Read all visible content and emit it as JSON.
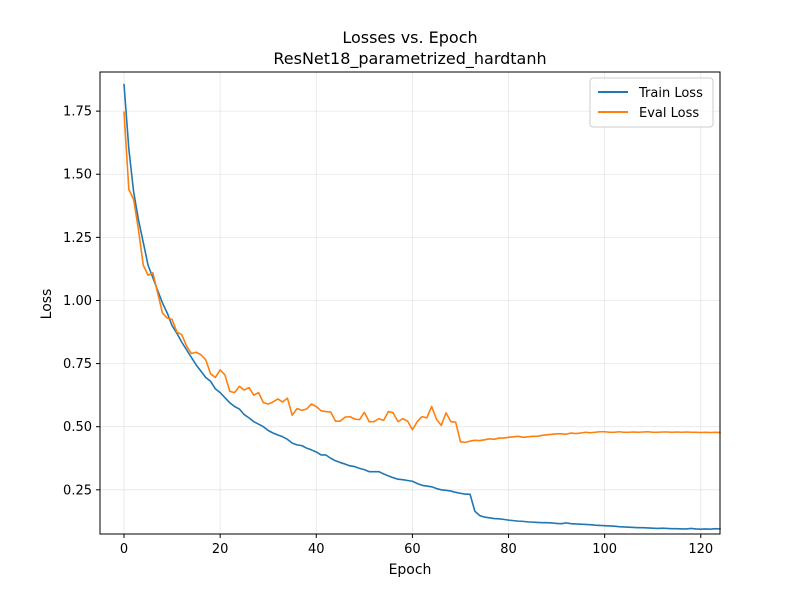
{
  "chart_data": {
    "type": "line",
    "title": "Losses vs. Epoch",
    "subtitle": "ResNet18_parametrized_hardtanh",
    "xlabel": "Epoch",
    "ylabel": "Loss",
    "xlim": [
      -5,
      124
    ],
    "ylim": [
      0.075,
      1.905
    ],
    "xticks": [
      0,
      20,
      40,
      60,
      80,
      100,
      120
    ],
    "yticks": [
      0.25,
      0.5,
      0.75,
      1.0,
      1.25,
      1.5,
      1.75
    ],
    "xtick_labels": [
      "0",
      "20",
      "40",
      "60",
      "80",
      "100",
      "120"
    ],
    "ytick_labels": [
      "0.25",
      "0.50",
      "0.75",
      "1.00",
      "1.25",
      "1.50",
      "1.75"
    ],
    "grid": true,
    "legend_position": "top-right",
    "series": [
      {
        "name": "Train Loss",
        "color": "#1f77b4",
        "x_start": 0,
        "values": [
          1.855,
          1.6,
          1.43,
          1.32,
          1.23,
          1.14,
          1.09,
          1.04,
          0.99,
          0.95,
          0.9,
          0.87,
          0.835,
          0.805,
          0.775,
          0.745,
          0.72,
          0.695,
          0.68,
          0.65,
          0.635,
          0.615,
          0.595,
          0.58,
          0.57,
          0.548,
          0.535,
          0.52,
          0.51,
          0.5,
          0.485,
          0.475,
          0.467,
          0.46,
          0.45,
          0.435,
          0.428,
          0.425,
          0.415,
          0.408,
          0.4,
          0.388,
          0.388,
          0.375,
          0.365,
          0.358,
          0.352,
          0.345,
          0.342,
          0.335,
          0.33,
          0.322,
          0.322,
          0.322,
          0.313,
          0.305,
          0.298,
          0.292,
          0.29,
          0.287,
          0.284,
          0.275,
          0.268,
          0.265,
          0.262,
          0.255,
          0.25,
          0.248,
          0.245,
          0.24,
          0.236,
          0.233,
          0.232,
          0.165,
          0.148,
          0.142,
          0.139,
          0.136,
          0.135,
          0.133,
          0.13,
          0.128,
          0.126,
          0.125,
          0.123,
          0.122,
          0.121,
          0.12,
          0.12,
          0.119,
          0.117,
          0.116,
          0.119,
          0.116,
          0.115,
          0.114,
          0.113,
          0.112,
          0.11,
          0.109,
          0.108,
          0.107,
          0.106,
          0.104,
          0.103,
          0.102,
          0.101,
          0.1,
          0.1,
          0.099,
          0.098,
          0.097,
          0.098,
          0.097,
          0.096,
          0.096,
          0.095,
          0.095,
          0.097,
          0.095,
          0.094,
          0.095,
          0.094,
          0.096,
          0.095
        ]
      },
      {
        "name": "Eval Loss",
        "color": "#ff7f0e",
        "x_start": 0,
        "values": [
          1.745,
          1.44,
          1.4,
          1.28,
          1.14,
          1.1,
          1.11,
          1.03,
          0.95,
          0.93,
          0.925,
          0.875,
          0.865,
          0.82,
          0.79,
          0.795,
          0.785,
          0.765,
          0.71,
          0.695,
          0.725,
          0.705,
          0.64,
          0.635,
          0.66,
          0.645,
          0.655,
          0.625,
          0.635,
          0.595,
          0.59,
          0.598,
          0.61,
          0.598,
          0.613,
          0.545,
          0.572,
          0.565,
          0.57,
          0.59,
          0.58,
          0.563,
          0.56,
          0.558,
          0.522,
          0.522,
          0.538,
          0.54,
          0.53,
          0.528,
          0.557,
          0.52,
          0.52,
          0.532,
          0.525,
          0.56,
          0.555,
          0.52,
          0.532,
          0.522,
          0.488,
          0.52,
          0.54,
          0.535,
          0.58,
          0.53,
          0.505,
          0.555,
          0.52,
          0.518,
          0.44,
          0.438,
          0.443,
          0.446,
          0.445,
          0.448,
          0.452,
          0.45,
          0.455,
          0.455,
          0.458,
          0.46,
          0.462,
          0.458,
          0.46,
          0.462,
          0.462,
          0.466,
          0.468,
          0.47,
          0.472,
          0.472,
          0.47,
          0.475,
          0.473,
          0.475,
          0.478,
          0.476,
          0.478,
          0.48,
          0.48,
          0.478,
          0.478,
          0.48,
          0.478,
          0.478,
          0.479,
          0.478,
          0.479,
          0.48,
          0.478,
          0.478,
          0.479,
          0.479,
          0.478,
          0.479,
          0.478,
          0.479,
          0.478,
          0.478,
          0.477,
          0.478,
          0.477,
          0.478,
          0.477
        ]
      }
    ]
  }
}
